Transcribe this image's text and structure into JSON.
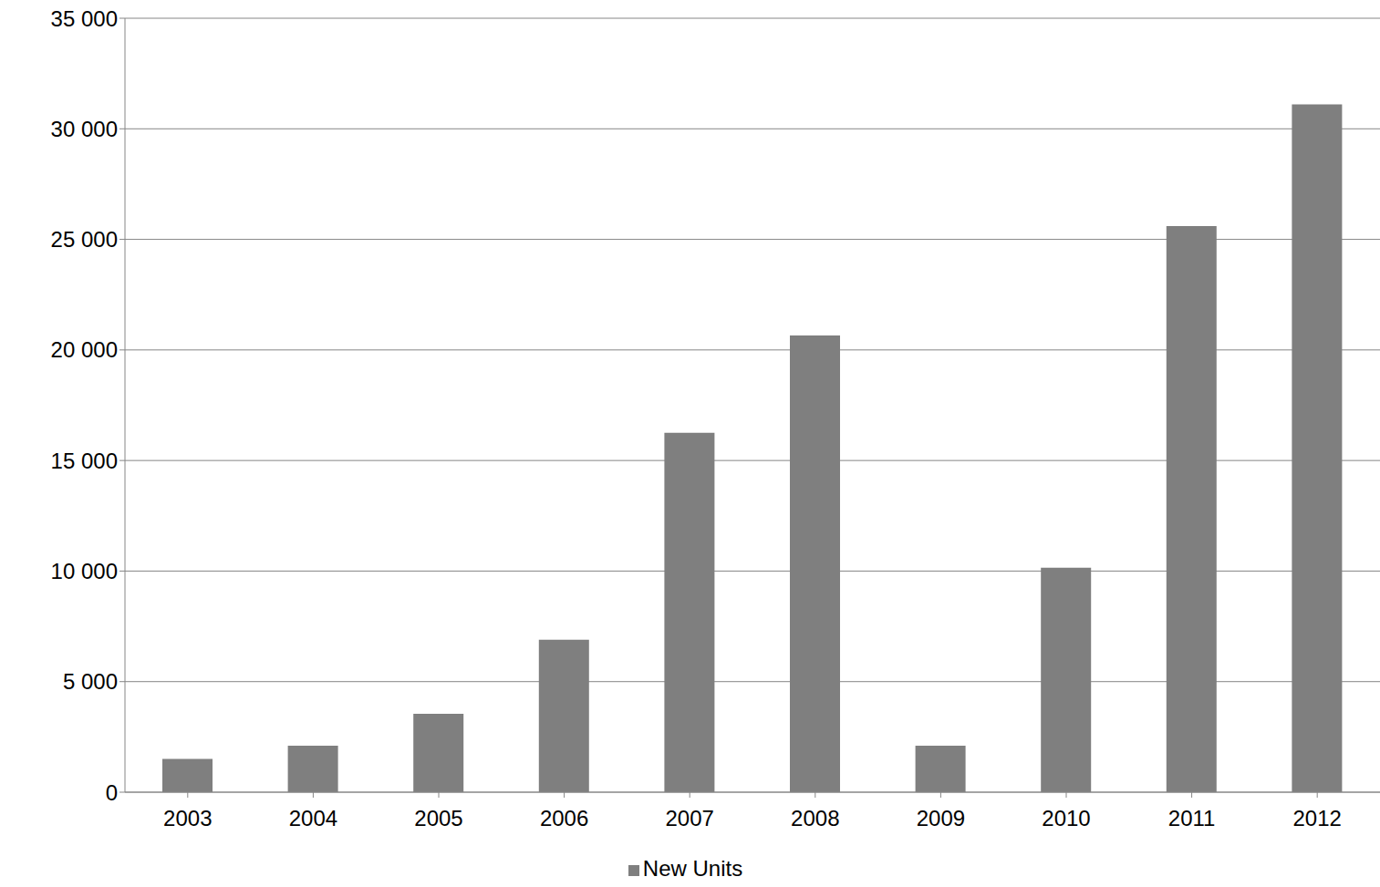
{
  "chart_data": {
    "type": "bar",
    "categories": [
      "2003",
      "2004",
      "2005",
      "2006",
      "2007",
      "2008",
      "2009",
      "2010",
      "2011",
      "2012"
    ],
    "series": [
      {
        "name": "New Units",
        "color": "#7f7f7f",
        "values": [
          1500,
          2100,
          3550,
          6900,
          16250,
          20650,
          2100,
          10150,
          25600,
          31100
        ]
      }
    ],
    "ylim": [
      0,
      35000
    ],
    "yticks": [
      0,
      {
        "value": 5000,
        "label": "5 000"
      },
      {
        "value": 10000,
        "label": "10 000"
      },
      {
        "value": 15000,
        "label": "15 000"
      },
      {
        "value": 20000,
        "label": "20 000"
      },
      {
        "value": 25000,
        "label": "25 000"
      },
      {
        "value": 30000,
        "label": "30 000"
      },
      {
        "value": 35000,
        "label": "35 000"
      }
    ],
    "grid": true,
    "legend": "bottom"
  }
}
